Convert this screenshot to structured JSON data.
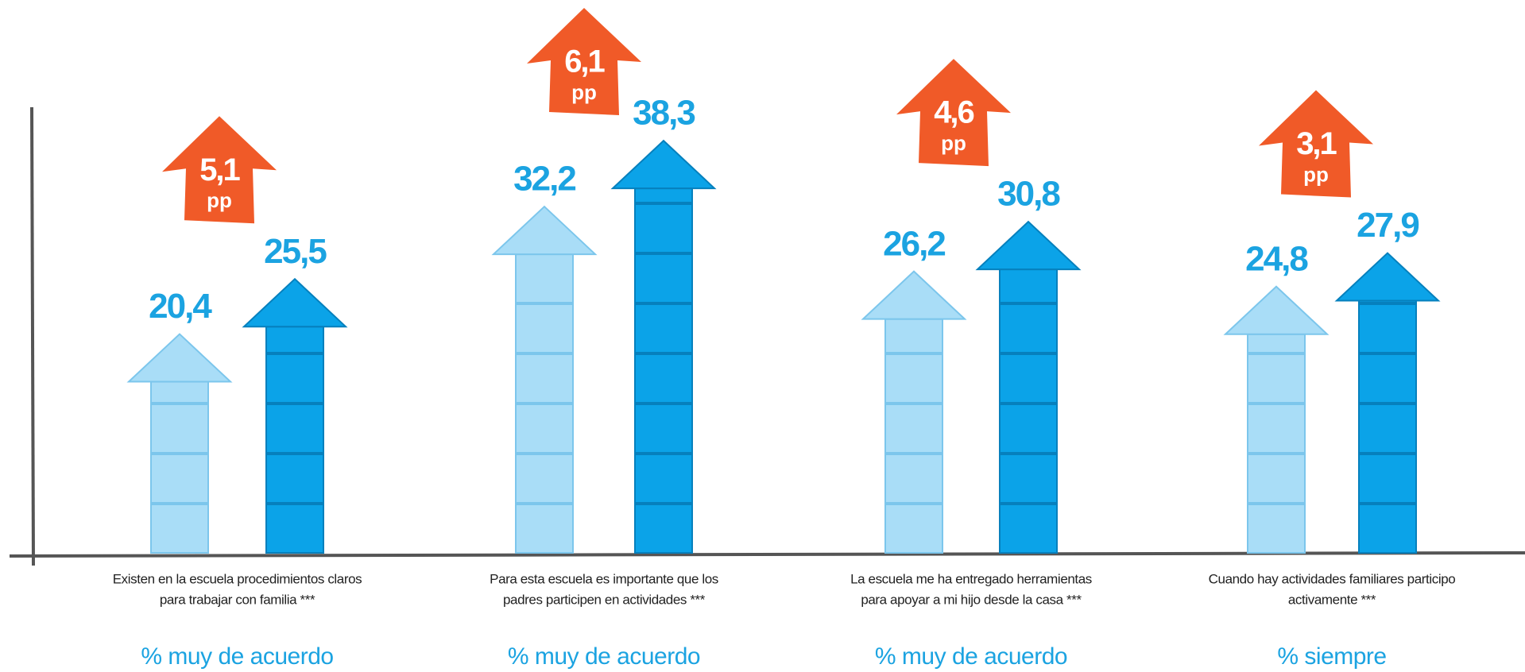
{
  "chart_data": {
    "type": "bar",
    "categories": [
      [
        "Existen en la escuela procedimientos claros",
        "para trabajar con familia  ***"
      ],
      [
        "Para esta escuela es importante que los",
        "padres participen en actividades  ***"
      ],
      [
        "La escuela me ha entregado herramientas",
        "para apoyar a mi hijo desde la casa ***"
      ],
      [
        "Cuando hay actividades familiares participo",
        "activamente  ***"
      ]
    ],
    "measures": [
      "%  muy de acuerdo",
      "%  muy de acuerdo",
      "%  muy de acuerdo",
      "%  siempre"
    ],
    "series": [
      {
        "color": "#a9ddf7",
        "values": [
          20.4,
          32.2,
          26.2,
          24.8
        ],
        "value_labels": [
          "20,4",
          "32,2",
          "26,2",
          "24,8"
        ]
      },
      {
        "color": "#0ba3e8",
        "values": [
          25.5,
          38.3,
          30.8,
          27.9
        ],
        "value_labels": [
          "25,5",
          "38,3",
          "30,8",
          "27,9"
        ]
      }
    ],
    "changes": {
      "color": "#f05a28",
      "values": [
        5.1,
        6.1,
        4.6,
        3.1
      ],
      "value_labels": [
        "5,1",
        "6,1",
        "4,6",
        "3,1"
      ],
      "unit": "pp"
    },
    "ylim": [
      0,
      45
    ]
  }
}
